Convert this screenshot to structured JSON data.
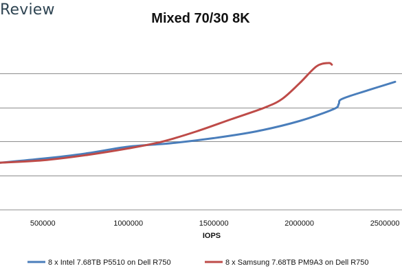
{
  "brand": {
    "text": "Review"
  },
  "chart_data": {
    "type": "line",
    "title": "Mixed 70/30 8K",
    "xlabel": "IOPS",
    "ylabel": "",
    "xlim": [
      250000,
      2600000
    ],
    "ylim": [
      0,
      5
    ],
    "x_ticks": [
      500000,
      1000000,
      1500000,
      2000000,
      2500000
    ],
    "x_tick_labels": [
      "500000",
      "1000000",
      "1500000",
      "2000000",
      "2500000"
    ],
    "y_gridlines": [
      1,
      2,
      3,
      4
    ],
    "grid": "horizontal",
    "legend_position": "bottom",
    "series": [
      {
        "name": "8 x Intel 7.68TB P5510 on Dell R750",
        "color": "#4a7ebb",
        "x": [
          250000,
          500000,
          750000,
          1000000,
          1250000,
          1500000,
          1750000,
          2000000,
          2200000,
          2230000,
          2250000,
          2400000,
          2560000
        ],
        "y": [
          1.38,
          1.5,
          1.65,
          1.85,
          1.95,
          2.1,
          2.3,
          2.6,
          2.95,
          3.1,
          3.25,
          3.5,
          3.75
        ]
      },
      {
        "name": "8 x Samsung 7.68TB PM9A3 on Dell R750",
        "color": "#be4b48",
        "x": [
          250000,
          500000,
          750000,
          1000000,
          1200000,
          1400000,
          1600000,
          1800000,
          1900000,
          2000000,
          2100000,
          2170000,
          2190000
        ],
        "y": [
          1.38,
          1.45,
          1.6,
          1.8,
          2.0,
          2.3,
          2.65,
          3.0,
          3.25,
          3.7,
          4.2,
          4.3,
          4.25
        ]
      }
    ]
  }
}
